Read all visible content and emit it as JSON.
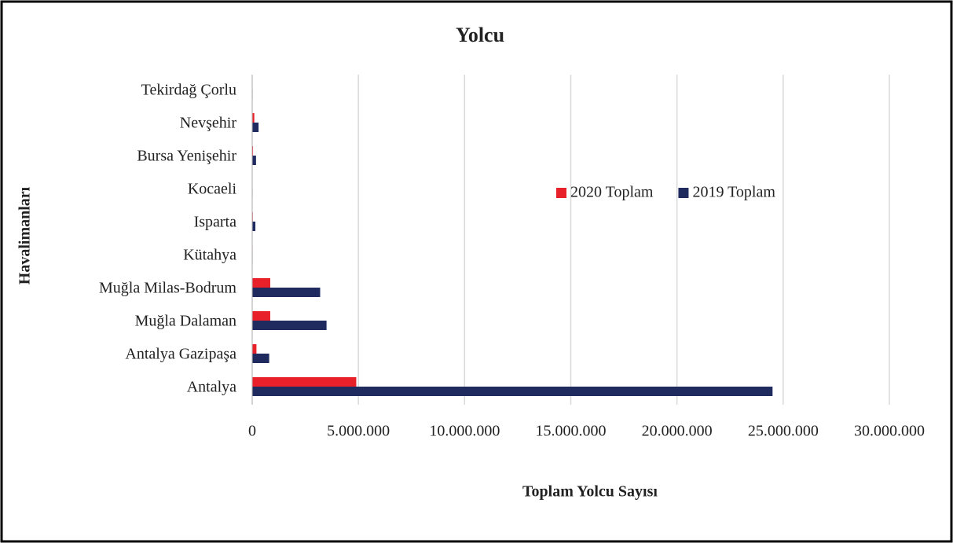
{
  "chart_data": {
    "type": "bar",
    "orientation": "horizontal",
    "title": "Yolcu",
    "xlabel": "Toplam Yolcu  Sayısı",
    "ylabel": "Havalimanları",
    "categories": [
      "Antalya",
      "Antalya Gazipaşa",
      "Muğla Dalaman",
      "Muğla Milas-Bodrum",
      "Kütahya",
      "Isparta",
      "Kocaeli",
      "Bursa Yenişehir",
      "Nevşehir",
      "Tekirdağ Çorlu"
    ],
    "series": [
      {
        "name": "2020 Toplam",
        "color": "#e8202a",
        "values": [
          4900000,
          200000,
          850000,
          850000,
          20000,
          30000,
          10000,
          40000,
          100000,
          10000
        ]
      },
      {
        "name": "2019 Toplam",
        "color": "#1f2a5e",
        "values": [
          24500000,
          800000,
          3500000,
          3200000,
          20000,
          150000,
          20000,
          180000,
          300000,
          20000
        ]
      }
    ],
    "xlim": [
      0,
      30000000
    ],
    "xticks": [
      0,
      {
        "value": 5000000,
        "label": "5.000.000"
      },
      {
        "value": 10000000,
        "label": "10.000.000"
      },
      {
        "value": 15000000,
        "label": "15.000.000"
      },
      {
        "value": 20000000,
        "label": "20.000.000"
      },
      {
        "value": 25000000,
        "label": "25.000.000"
      },
      {
        "value": 30000000,
        "label": "30.000.000"
      }
    ],
    "grid": true,
    "legend": "right"
  }
}
